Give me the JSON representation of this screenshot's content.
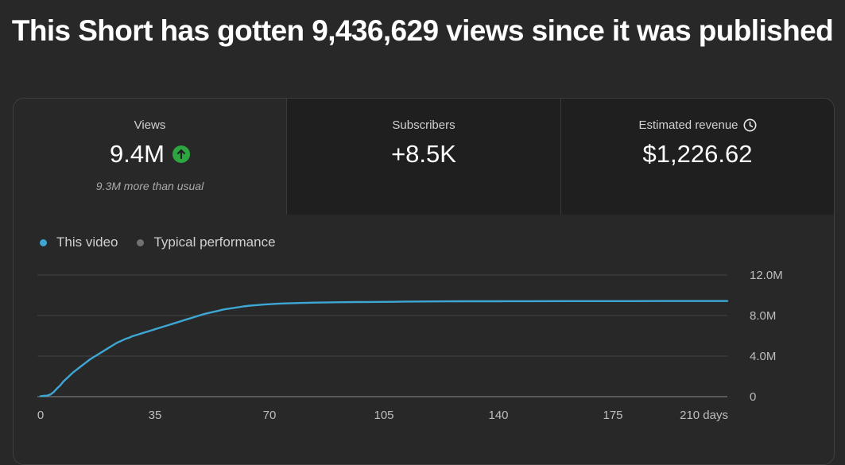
{
  "headline": "This Short has gotten 9,436,629 views since it was published",
  "metrics": [
    {
      "label": "Views",
      "value": "9.4M",
      "sub": "9.3M more than usual",
      "icon": "arrow-up-icon",
      "icon_color": "#2ba640",
      "selected": true
    },
    {
      "label": "Subscribers",
      "value": "+8.5K",
      "sub": "",
      "selected": false
    },
    {
      "label": "Estimated revenue",
      "value": "$1,226.62",
      "sub": "",
      "icon": "clock-icon",
      "selected": false
    }
  ],
  "legend": [
    {
      "label": "This video",
      "color": "#3ea6d3"
    },
    {
      "label": "Typical performance",
      "color": "#717171"
    }
  ],
  "chart_data": {
    "type": "line",
    "x_tick_labels": [
      "0",
      "35",
      "70",
      "105",
      "140",
      "175",
      "210 days"
    ],
    "x_ticks": [
      0,
      35,
      70,
      105,
      140,
      175,
      210
    ],
    "xlim": [
      0,
      210
    ],
    "y_tick_labels": [
      "12.0M",
      "8.0M",
      "4.0M",
      "0"
    ],
    "y_ticks": [
      12000000,
      8000000,
      4000000,
      0
    ],
    "ylim": [
      0,
      12000000
    ],
    "grid": true,
    "legend_position": "top-left",
    "series": [
      {
        "name": "This video",
        "color": "#3ea6d3",
        "x": [
          0,
          1,
          2,
          3,
          4,
          5,
          6,
          7,
          8,
          9,
          10,
          11,
          12,
          13,
          14,
          15,
          16,
          17,
          18,
          19,
          20,
          21,
          22,
          23,
          24,
          25,
          26,
          27,
          28,
          29,
          30,
          31,
          32,
          33,
          34,
          35,
          36,
          37,
          38,
          39,
          40,
          42,
          44,
          46,
          48,
          50,
          52,
          54,
          56,
          58,
          60,
          62,
          64,
          66,
          68,
          70,
          72,
          74,
          76,
          78,
          80,
          84,
          88,
          92,
          96,
          100,
          104,
          108,
          112,
          116,
          120,
          130,
          140,
          150,
          160,
          170,
          180,
          190,
          200,
          210
        ],
        "y": [
          50000,
          80000,
          100000,
          200000,
          450000,
          800000,
          1100000,
          1500000,
          1800000,
          2100000,
          2400000,
          2650000,
          2900000,
          3150000,
          3400000,
          3650000,
          3850000,
          4050000,
          4250000,
          4450000,
          4650000,
          4850000,
          5050000,
          5250000,
          5400000,
          5550000,
          5700000,
          5800000,
          5950000,
          6050000,
          6150000,
          6250000,
          6350000,
          6450000,
          6550000,
          6650000,
          6750000,
          6850000,
          6950000,
          7050000,
          7150000,
          7350000,
          7550000,
          7750000,
          7950000,
          8150000,
          8300000,
          8450000,
          8600000,
          8700000,
          8800000,
          8900000,
          8980000,
          9030000,
          9080000,
          9120000,
          9160000,
          9190000,
          9210000,
          9230000,
          9250000,
          9280000,
          9300000,
          9320000,
          9330000,
          9340000,
          9350000,
          9360000,
          9380000,
          9390000,
          9400000,
          9410000,
          9415000,
          9420000,
          9424000,
          9428000,
          9431000,
          9434000,
          9436000,
          9436629
        ]
      }
    ]
  }
}
